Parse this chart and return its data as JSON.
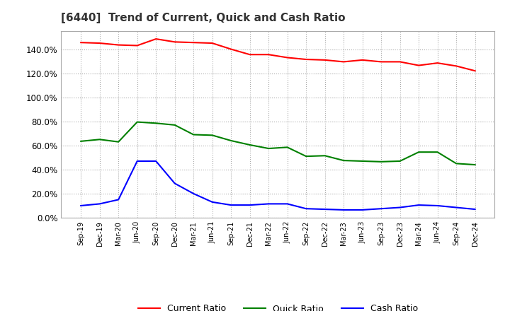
{
  "title": "[6440]  Trend of Current, Quick and Cash Ratio",
  "x_labels": [
    "Sep-19",
    "Dec-19",
    "Mar-20",
    "Jun-20",
    "Sep-20",
    "Dec-20",
    "Mar-21",
    "Jun-21",
    "Sep-21",
    "Dec-21",
    "Mar-22",
    "Jun-22",
    "Sep-22",
    "Dec-22",
    "Mar-23",
    "Jun-23",
    "Sep-23",
    "Dec-23",
    "Mar-24",
    "Jun-24",
    "Sep-24",
    "Dec-24"
  ],
  "current_ratio": [
    145.5,
    145.0,
    143.5,
    143.0,
    148.5,
    146.0,
    145.5,
    145.0,
    140.0,
    135.5,
    135.5,
    133.0,
    131.5,
    131.0,
    129.5,
    131.0,
    129.5,
    129.5,
    126.5,
    128.5,
    126.0,
    122.0
  ],
  "quick_ratio": [
    63.5,
    65.0,
    63.0,
    79.5,
    78.5,
    77.0,
    69.0,
    68.5,
    64.0,
    60.5,
    57.5,
    58.5,
    51.0,
    51.5,
    47.5,
    47.0,
    46.5,
    47.0,
    54.5,
    54.5,
    45.0,
    44.0
  ],
  "cash_ratio": [
    10.0,
    11.5,
    15.0,
    47.0,
    47.0,
    28.5,
    20.0,
    13.0,
    10.5,
    10.5,
    11.5,
    11.5,
    7.5,
    7.0,
    6.5,
    6.5,
    7.5,
    8.5,
    10.5,
    10.0,
    8.5,
    7.0
  ],
  "current_color": "#FF0000",
  "quick_color": "#008000",
  "cash_color": "#0000FF",
  "background_color": "#FFFFFF",
  "plot_bg_color": "#FFFFFF",
  "grid_color": "#AAAAAA",
  "ylim": [
    0,
    155
  ],
  "yticks": [
    0,
    20,
    40,
    60,
    80,
    100,
    120,
    140
  ],
  "legend_labels": [
    "Current Ratio",
    "Quick Ratio",
    "Cash Ratio"
  ]
}
